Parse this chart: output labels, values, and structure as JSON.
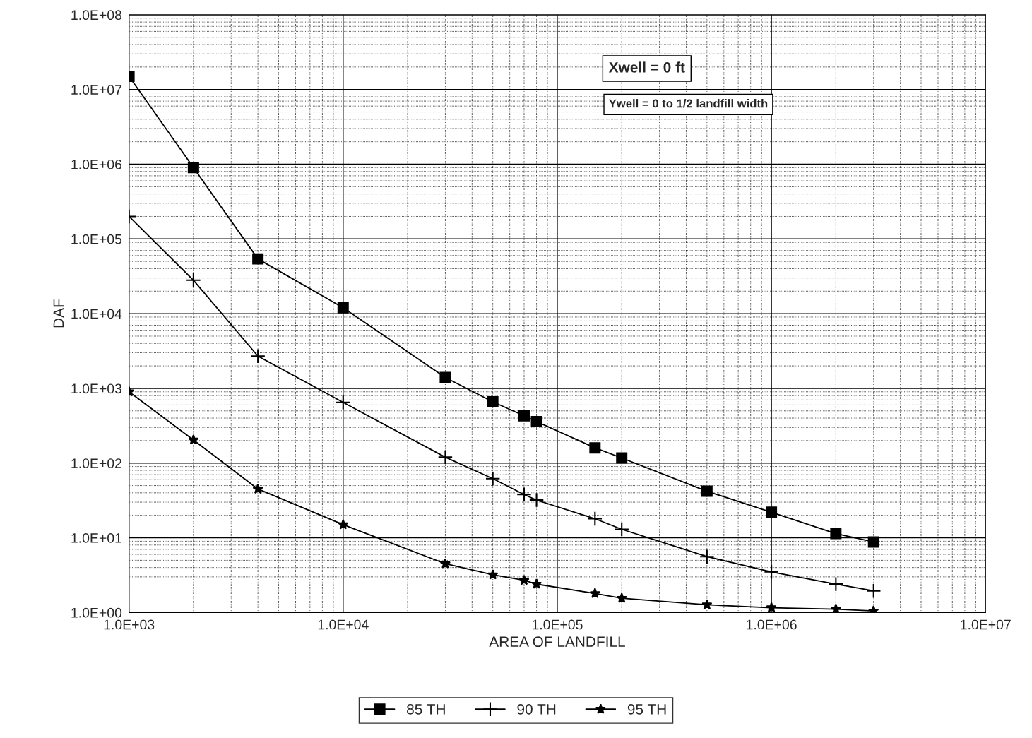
{
  "chart_data": {
    "type": "line",
    "xlabel": "AREA OF LANDFILL",
    "ylabel": "DAF",
    "log": "xy",
    "grid": true,
    "legend": "bottom",
    "line_style": "solid",
    "xlim": [
      1000,
      10000000
    ],
    "ylim": [
      1,
      100000000
    ],
    "xticks": [
      {
        "value": 1000,
        "label": "1.0E+03"
      },
      {
        "value": 10000,
        "label": "1.0E+04"
      },
      {
        "value": 100000,
        "label": "1.0E+05"
      },
      {
        "value": 1000000,
        "label": "1.0E+06"
      },
      {
        "value": 10000000,
        "label": "1.0E+07"
      }
    ],
    "yticks": [
      {
        "value": 1,
        "label": "1.0E+00"
      },
      {
        "value": 10,
        "label": "1.0E+01"
      },
      {
        "value": 100,
        "label": "1.0E+02"
      },
      {
        "value": 1000,
        "label": "1.0E+03"
      },
      {
        "value": 10000,
        "label": "1.0E+04"
      },
      {
        "value": 100000,
        "label": "1.0E+05"
      },
      {
        "value": 1000000,
        "label": "1.0E+06"
      },
      {
        "value": 10000000,
        "label": "1.0E+07"
      },
      {
        "value": 100000000,
        "label": "1.0E+08"
      }
    ],
    "annotations": [
      "Xwell = 0 ft",
      "Ywell = 0 to 1/2 landfill width"
    ],
    "series": [
      {
        "name": "85 TH",
        "color": "#000000",
        "marker": "square",
        "x": [
          1000,
          2000,
          4000,
          10000,
          30000,
          50000,
          70000,
          80000,
          150000,
          200000,
          500000,
          1000000,
          2000000,
          3000000
        ],
        "values": [
          15000000,
          900000,
          54000,
          12000,
          1400,
          660,
          430,
          360,
          160,
          117,
          42,
          22,
          11.4,
          8.8
        ]
      },
      {
        "name": "90 TH",
        "color": "#000000",
        "marker": "cross",
        "x": [
          1000,
          2000,
          4000,
          10000,
          30000,
          50000,
          70000,
          80000,
          150000,
          200000,
          500000,
          1000000,
          2000000,
          3000000
        ],
        "values": [
          200000,
          28000,
          2700,
          650,
          120,
          62,
          38,
          32,
          18,
          13,
          5.6,
          3.5,
          2.4,
          1.95
        ]
      },
      {
        "name": "95 TH",
        "color": "#000000",
        "marker": "star",
        "x": [
          1000,
          2000,
          4000,
          10000,
          30000,
          50000,
          70000,
          80000,
          150000,
          200000,
          500000,
          1000000,
          2000000,
          3000000
        ],
        "values": [
          900,
          204,
          45,
          15,
          4.5,
          3.2,
          2.7,
          2.4,
          1.8,
          1.55,
          1.27,
          1.16,
          1.11,
          1.05
        ]
      }
    ]
  }
}
